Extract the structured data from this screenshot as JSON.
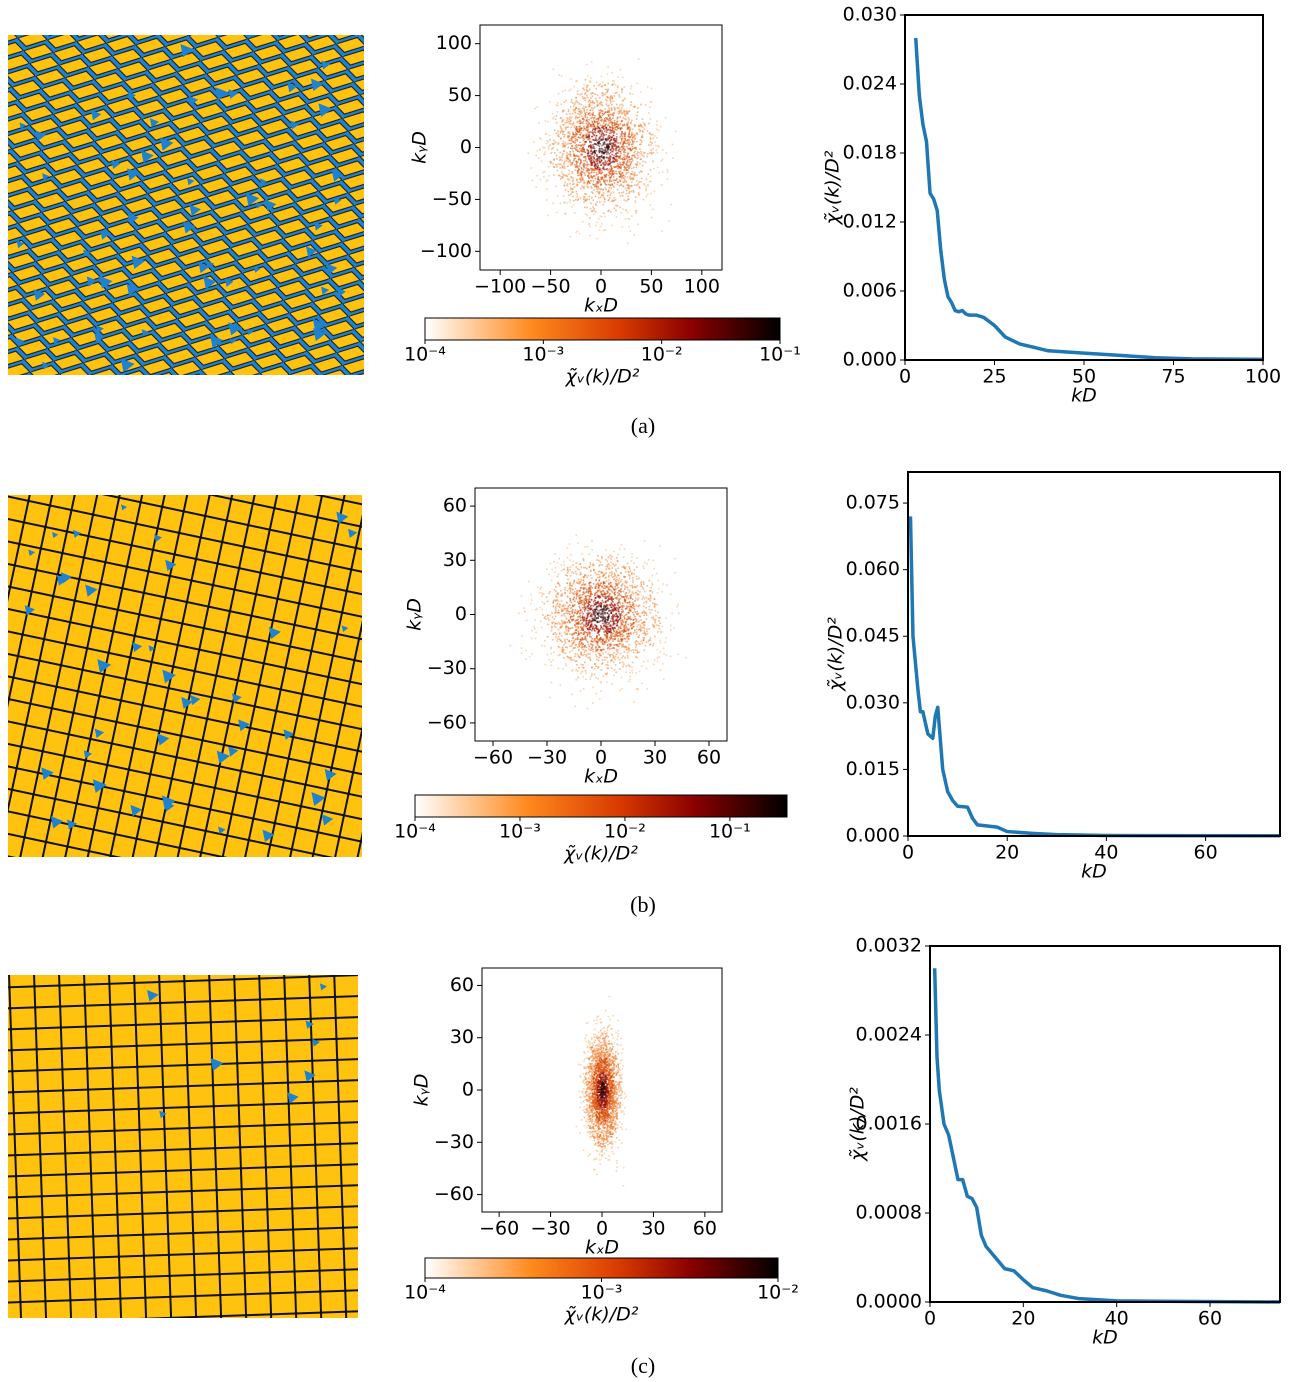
{
  "captions": [
    "(a)",
    "(b)",
    "(c)"
  ],
  "chart_data": [
    {
      "type": "heatmap",
      "xlabel": "kₓD",
      "ylabel": "kᵧD",
      "xlim": [
        -120,
        120
      ],
      "ylim": [
        -118,
        118
      ],
      "xticks": [
        {
          "value": -100,
          "label": "−100"
        },
        {
          "value": -50,
          "label": "−50"
        },
        0,
        50,
        100
      ],
      "yticks": [
        {
          "value": -100,
          "label": "−100"
        },
        {
          "value": -50,
          "label": "−50"
        },
        0,
        50,
        100
      ],
      "colorbar": {
        "label": "χ̃ᵥ(k)/D²",
        "scale": "log",
        "lim": [
          0.0001,
          0.1
        ],
        "ticks": [
          {
            "value": 0.0001,
            "label": "10⁻⁴"
          },
          {
            "value": 0.001,
            "label": "10⁻³"
          },
          {
            "value": 0.01,
            "label": "10⁻²"
          },
          {
            "value": 0.1,
            "label": "10⁻¹"
          }
        ]
      }
    },
    {
      "type": "line",
      "xlabel": "kD",
      "ylabel": "χ̃ᵥ(k)/D²",
      "xlim": [
        0,
        100
      ],
      "ylim": [
        0,
        0.03
      ],
      "xticks": [
        0,
        25,
        50,
        75,
        100
      ],
      "yticks": [
        {
          "value": 0,
          "label": "0.000"
        },
        {
          "value": 0.006,
          "label": "0.006"
        },
        {
          "value": 0.012,
          "label": "0.012"
        },
        {
          "value": 0.018,
          "label": "0.018"
        },
        {
          "value": 0.024,
          "label": "0.024"
        },
        {
          "value": 0.03,
          "label": "0.030"
        }
      ],
      "color": "#1f77b4",
      "x": [
        3,
        4,
        5,
        6,
        7,
        8,
        9,
        10,
        11,
        12,
        13,
        14,
        15,
        16,
        17,
        18,
        20,
        22,
        25,
        28,
        32,
        36,
        40,
        50,
        60,
        70,
        80,
        100
      ],
      "values": [
        0.028,
        0.023,
        0.0205,
        0.019,
        0.0145,
        0.014,
        0.013,
        0.0095,
        0.007,
        0.0055,
        0.005,
        0.0043,
        0.0042,
        0.0043,
        0.004,
        0.0039,
        0.0039,
        0.0037,
        0.003,
        0.002,
        0.0014,
        0.0011,
        0.0008,
        0.0006,
        0.0004,
        0.0002,
        0.0001,
        5e-05
      ]
    },
    {
      "type": "heatmap",
      "xlabel": "kₓD",
      "ylabel": "kᵧD",
      "xlim": [
        -70,
        70
      ],
      "ylim": [
        -70,
        70
      ],
      "xticks": [
        {
          "value": -60,
          "label": "−60"
        },
        {
          "value": -30,
          "label": "−30"
        },
        0,
        30,
        60
      ],
      "yticks": [
        {
          "value": -60,
          "label": "−60"
        },
        {
          "value": -30,
          "label": "−30"
        },
        0,
        30,
        60
      ],
      "colorbar": {
        "label": "χ̃ᵥ(k)/D²",
        "scale": "log",
        "lim": [
          0.0001,
          0.35
        ],
        "ticks": [
          {
            "value": 0.0001,
            "label": "10⁻⁴"
          },
          {
            "value": 0.001,
            "label": "10⁻³"
          },
          {
            "value": 0.01,
            "label": "10⁻²"
          },
          {
            "value": 0.1,
            "label": "10⁻¹"
          }
        ]
      }
    },
    {
      "type": "line",
      "xlabel": "kD",
      "ylabel": "χ̃ᵥ(k)/D²",
      "xlim": [
        0,
        75
      ],
      "ylim": [
        0,
        0.082
      ],
      "xticks": [
        0,
        20,
        40,
        60
      ],
      "yticks": [
        {
          "value": 0,
          "label": "0.000"
        },
        {
          "value": 0.015,
          "label": "0.015"
        },
        {
          "value": 0.03,
          "label": "0.030"
        },
        {
          "value": 0.045,
          "label": "0.045"
        },
        {
          "value": 0.06,
          "label": "0.060"
        },
        {
          "value": 0.075,
          "label": "0.075"
        }
      ],
      "color": "#1f77b4",
      "x": [
        0.5,
        1,
        2,
        2.5,
        3,
        4,
        5,
        5.5,
        6,
        6.5,
        7,
        8,
        9,
        10,
        12,
        13,
        14,
        18,
        20,
        25,
        30,
        40,
        75
      ],
      "values": [
        0.072,
        0.045,
        0.033,
        0.028,
        0.028,
        0.023,
        0.022,
        0.027,
        0.029,
        0.022,
        0.015,
        0.01,
        0.008,
        0.0067,
        0.0065,
        0.004,
        0.0025,
        0.002,
        0.001,
        0.0006,
        0.0003,
        0.0001,
        5e-05
      ]
    },
    {
      "type": "heatmap",
      "xlabel": "kₓD",
      "ylabel": "kᵧD",
      "xlim": [
        -70,
        70
      ],
      "ylim": [
        -70,
        70
      ],
      "xticks": [
        {
          "value": -60,
          "label": "−60"
        },
        {
          "value": -30,
          "label": "−30"
        },
        0,
        30,
        60
      ],
      "yticks": [
        {
          "value": -60,
          "label": "−60"
        },
        {
          "value": -30,
          "label": "−30"
        },
        0,
        30,
        60
      ],
      "colorbar": {
        "label": "χ̃ᵥ(k)/D²",
        "scale": "log",
        "lim": [
          0.0001,
          0.01
        ],
        "ticks": [
          {
            "value": 0.0001,
            "label": "10⁻⁴"
          },
          {
            "value": 0.001,
            "label": "10⁻³"
          },
          {
            "value": 0.01,
            "label": "10⁻²"
          }
        ]
      }
    },
    {
      "type": "line",
      "xlabel": "kD",
      "ylabel": "χ̃ᵥ(k)/D²",
      "xlim": [
        0,
        75
      ],
      "ylim": [
        0,
        0.0032
      ],
      "xticks": [
        0,
        20,
        40,
        60
      ],
      "yticks": [
        {
          "value": 0,
          "label": "0.0000"
        },
        {
          "value": 0.0008,
          "label": "0.0008"
        },
        {
          "value": 0.0016,
          "label": "0.0016"
        },
        {
          "value": 0.0024,
          "label": "0.0024"
        },
        {
          "value": 0.0032,
          "label": "0.0032"
        }
      ],
      "color": "#1f77b4",
      "x": [
        1,
        1.5,
        2,
        3,
        4,
        5,
        6,
        7,
        8,
        9,
        10,
        11,
        12,
        14,
        16,
        18,
        20,
        22,
        25,
        28,
        32,
        40,
        75
      ],
      "values": [
        0.003,
        0.0022,
        0.0019,
        0.0016,
        0.0015,
        0.0013,
        0.0011,
        0.0011,
        0.00095,
        0.00093,
        0.00085,
        0.0006,
        0.0005,
        0.0004,
        0.0003,
        0.00028,
        0.0002,
        0.00013,
        0.0001,
        6e-05,
        3e-05,
        1e-05,
        0
      ]
    }
  ]
}
